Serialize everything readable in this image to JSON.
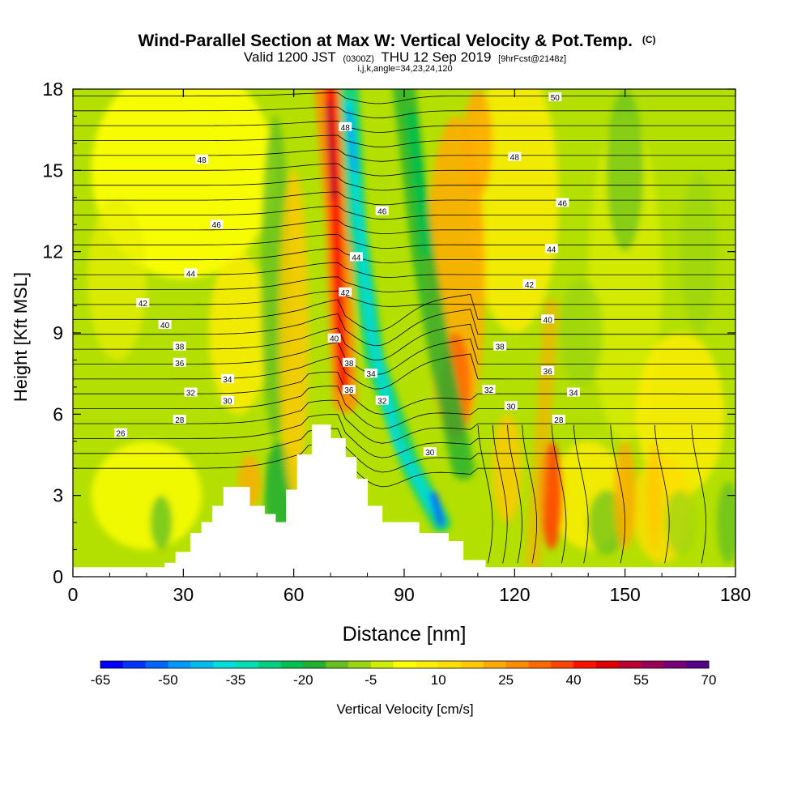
{
  "chart_data": {
    "type": "heatmap",
    "title": "Wind-Parallel Section at Max W: Vertical Velocity & Pot.Temp.",
    "title_suffix": "(C)",
    "subtitle_main_1": "Valid 1200 JST",
    "subtitle_small_1": "(0300Z)",
    "subtitle_main_2": "THU 12 Sep 2019",
    "subtitle_small_2": "[9hrFcst@2148z]",
    "subtitle_line2": "i,j,k,angle=34,23,24,120",
    "xlabel": "Distance [nm]",
    "ylabel": "Height [Kft MSL]",
    "xlim": [
      0,
      180
    ],
    "ylim": [
      0,
      18
    ],
    "x_ticks": [
      "0",
      "30",
      "60",
      "90",
      "120",
      "150",
      "180"
    ],
    "y_ticks": [
      "0",
      "3",
      "6",
      "9",
      "12",
      "15",
      "18"
    ],
    "colorbar": {
      "label": "Vertical Velocity [cm/s]",
      "tick_labels": [
        "-65",
        "-50",
        "-35",
        "-20",
        "-5",
        "10",
        "25",
        "40",
        "55",
        "70"
      ],
      "colors": [
        "#0000ff",
        "#0033ff",
        "#0066ff",
        "#0099ff",
        "#00bbee",
        "#00dddd",
        "#00e0b0",
        "#00d080",
        "#00c050",
        "#22b030",
        "#66c022",
        "#99d411",
        "#ccee00",
        "#ffff00",
        "#ffee00",
        "#ffdd00",
        "#ffc800",
        "#ffaa00",
        "#ff8c00",
        "#ff6a00",
        "#ff4400",
        "#ff1100",
        "#dd0000",
        "#bb0033",
        "#990055",
        "#770077",
        "#550088"
      ]
    },
    "theta_contour_labels": [
      {
        "value": "26",
        "x": 13,
        "y": 5.3
      },
      {
        "value": "28",
        "x": 29,
        "y": 5.8
      },
      {
        "value": "30",
        "x": 42,
        "y": 6.5
      },
      {
        "value": "32",
        "x": 32,
        "y": 6.8
      },
      {
        "value": "34",
        "x": 42,
        "y": 7.3
      },
      {
        "value": "36",
        "x": 29,
        "y": 7.9
      },
      {
        "value": "38",
        "x": 29,
        "y": 8.5
      },
      {
        "value": "40",
        "x": 25,
        "y": 9.3
      },
      {
        "value": "42",
        "x": 19,
        "y": 10.1
      },
      {
        "value": "44",
        "x": 32,
        "y": 11.2
      },
      {
        "value": "46",
        "x": 39,
        "y": 13.0
      },
      {
        "value": "48",
        "x": 35,
        "y": 15.4
      },
      {
        "value": "48",
        "x": 74,
        "y": 16.6
      },
      {
        "value": "46",
        "x": 84,
        "y": 13.5
      },
      {
        "value": "44",
        "x": 77,
        "y": 11.8
      },
      {
        "value": "42",
        "x": 74,
        "y": 10.5
      },
      {
        "value": "40",
        "x": 71,
        "y": 8.8
      },
      {
        "value": "38",
        "x": 75,
        "y": 7.9
      },
      {
        "value": "34",
        "x": 81,
        "y": 7.5
      },
      {
        "value": "36",
        "x": 75,
        "y": 6.9
      },
      {
        "value": "32",
        "x": 84,
        "y": 6.5
      },
      {
        "value": "30",
        "x": 97,
        "y": 4.6
      },
      {
        "value": "50",
        "x": 131,
        "y": 17.7
      },
      {
        "value": "48",
        "x": 120,
        "y": 15.5
      },
      {
        "value": "46",
        "x": 133,
        "y": 13.8
      },
      {
        "value": "44",
        "x": 130,
        "y": 12.1
      },
      {
        "value": "42",
        "x": 124,
        "y": 10.8
      },
      {
        "value": "40",
        "x": 129,
        "y": 9.5
      },
      {
        "value": "38",
        "x": 116,
        "y": 8.5
      },
      {
        "value": "36",
        "x": 129,
        "y": 7.6
      },
      {
        "value": "34",
        "x": 136,
        "y": 6.8
      },
      {
        "value": "32",
        "x": 113,
        "y": 6.9
      },
      {
        "value": "30",
        "x": 119,
        "y": 6.3
      },
      {
        "value": "28",
        "x": 132,
        "y": 5.8
      }
    ]
  }
}
